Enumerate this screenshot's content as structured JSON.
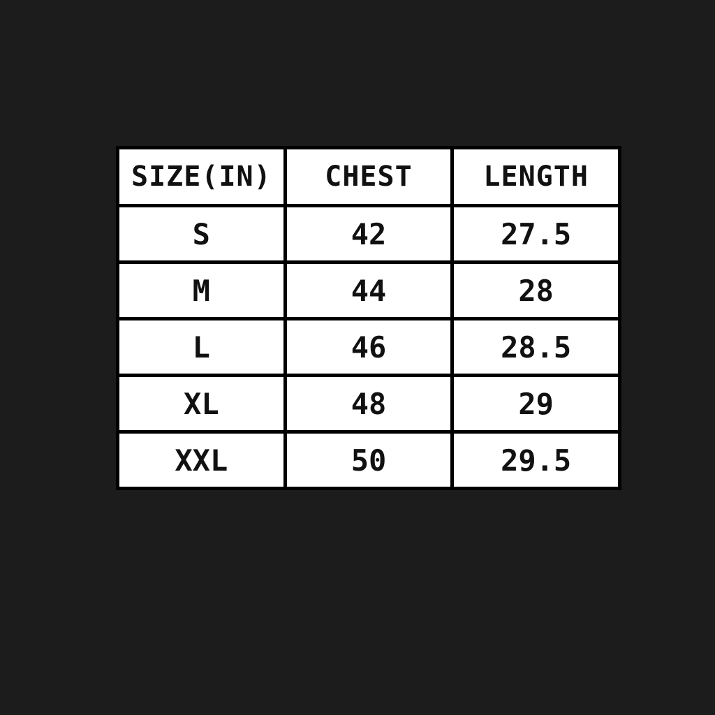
{
  "table": {
    "header": [
      "SIZE(IN)",
      "CHEST",
      "LENGTH"
    ],
    "rows": [
      [
        "S",
        "42",
        "27.5"
      ],
      [
        "M",
        "44",
        "28"
      ],
      [
        "L",
        "46",
        "28.5"
      ],
      [
        "XL",
        "48",
        "29"
      ],
      [
        "XXL",
        "50",
        "29.5"
      ]
    ]
  }
}
